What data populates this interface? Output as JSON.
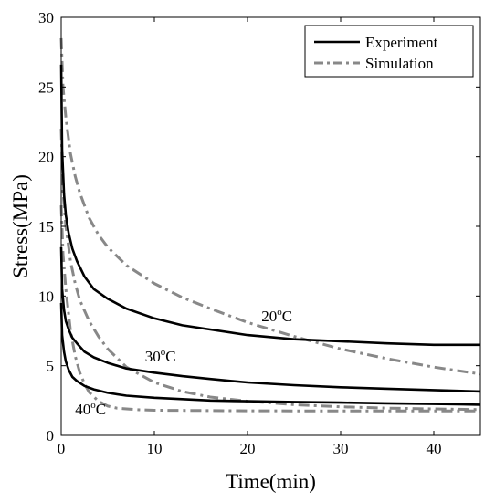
{
  "chart_data": {
    "type": "line",
    "xlabel": "Time(min)",
    "ylabel": "Stress(MPa)",
    "xlim": [
      0,
      45
    ],
    "ylim": [
      0,
      30
    ],
    "xticks": [
      0,
      10,
      20,
      30,
      40
    ],
    "yticks": [
      0,
      5,
      10,
      15,
      20,
      25,
      30
    ],
    "grid": false,
    "legend_position": "top-right",
    "legend": [
      {
        "label": "Experiment",
        "style": "solid",
        "color": "#000000"
      },
      {
        "label": "Simulation",
        "style": "dashdot",
        "color": "#888888"
      }
    ],
    "annotations": [
      {
        "text": "20",
        "sup": "o",
        "unit": "C",
        "at": [
          21.5,
          8.2
        ]
      },
      {
        "text": "30",
        "sup": "o",
        "unit": "C",
        "at": [
          9.0,
          5.3
        ]
      },
      {
        "text": "40",
        "sup": "o",
        "unit": "C",
        "at": [
          1.5,
          1.5
        ]
      }
    ],
    "series": [
      {
        "style": "solid",
        "color": "#000000",
        "x": [
          0,
          0.1,
          0.3,
          0.5,
          0.8,
          1.2,
          1.7,
          2.5,
          3.5,
          5,
          7,
          10,
          13,
          16,
          20,
          25,
          30,
          35,
          40,
          45
        ],
        "y": [
          26.6,
          20.5,
          17.3,
          15.8,
          14.5,
          13.4,
          12.5,
          11.4,
          10.5,
          9.8,
          9.1,
          8.4,
          7.9,
          7.6,
          7.2,
          6.9,
          6.75,
          6.6,
          6.5,
          6.5
        ]
      },
      {
        "style": "solid",
        "color": "#000000",
        "x": [
          0,
          0.1,
          0.3,
          0.5,
          0.8,
          1.2,
          1.7,
          2.5,
          3.5,
          5,
          7,
          10,
          13,
          16,
          20,
          25,
          30,
          35,
          40,
          45
        ],
        "y": [
          13.5,
          10.5,
          9.0,
          8.2,
          7.6,
          7.0,
          6.6,
          6.0,
          5.6,
          5.2,
          4.8,
          4.5,
          4.25,
          4.05,
          3.8,
          3.6,
          3.45,
          3.35,
          3.25,
          3.15
        ]
      },
      {
        "style": "solid",
        "color": "#000000",
        "x": [
          0,
          0.1,
          0.3,
          0.5,
          0.8,
          1.2,
          1.7,
          2.5,
          3.5,
          5,
          7,
          10,
          13,
          16,
          20,
          25,
          30,
          35,
          40,
          45
        ],
        "y": [
          9.5,
          7.2,
          6.0,
          5.3,
          4.7,
          4.2,
          3.9,
          3.55,
          3.3,
          3.05,
          2.85,
          2.7,
          2.6,
          2.5,
          2.45,
          2.4,
          2.35,
          2.3,
          2.25,
          2.2
        ]
      },
      {
        "style": "dashdot",
        "color": "#888888",
        "x": [
          0,
          0.2,
          0.5,
          1,
          1.5,
          2,
          3,
          4,
          5,
          7,
          10,
          13,
          16,
          20,
          25,
          30,
          35,
          40,
          45
        ],
        "y": [
          28.5,
          25.0,
          22.8,
          20.2,
          18.6,
          17.4,
          15.6,
          14.4,
          13.5,
          12.2,
          10.9,
          9.9,
          9.1,
          8.1,
          7.1,
          6.2,
          5.5,
          4.9,
          4.4
        ]
      },
      {
        "style": "dashdot",
        "color": "#888888",
        "x": [
          0,
          0.2,
          0.5,
          1,
          1.5,
          2,
          3,
          4,
          5,
          7,
          10,
          13,
          16,
          20,
          25,
          30,
          35,
          40,
          45
        ],
        "y": [
          22.0,
          17.5,
          15.0,
          12.5,
          10.9,
          9.7,
          8.2,
          7.1,
          6.2,
          4.9,
          3.8,
          3.15,
          2.75,
          2.45,
          2.2,
          2.05,
          1.95,
          1.9,
          1.85
        ]
      },
      {
        "style": "dashdot",
        "color": "#888888",
        "x": [
          0,
          0.2,
          0.5,
          1,
          1.5,
          2,
          2.5,
          3,
          4,
          5,
          6,
          8,
          10,
          15,
          20,
          30,
          45
        ],
        "y": [
          16.5,
          13.0,
          10.5,
          7.5,
          5.7,
          4.5,
          3.7,
          3.1,
          2.45,
          2.1,
          1.95,
          1.85,
          1.8,
          1.78,
          1.76,
          1.75,
          1.75
        ]
      }
    ]
  }
}
